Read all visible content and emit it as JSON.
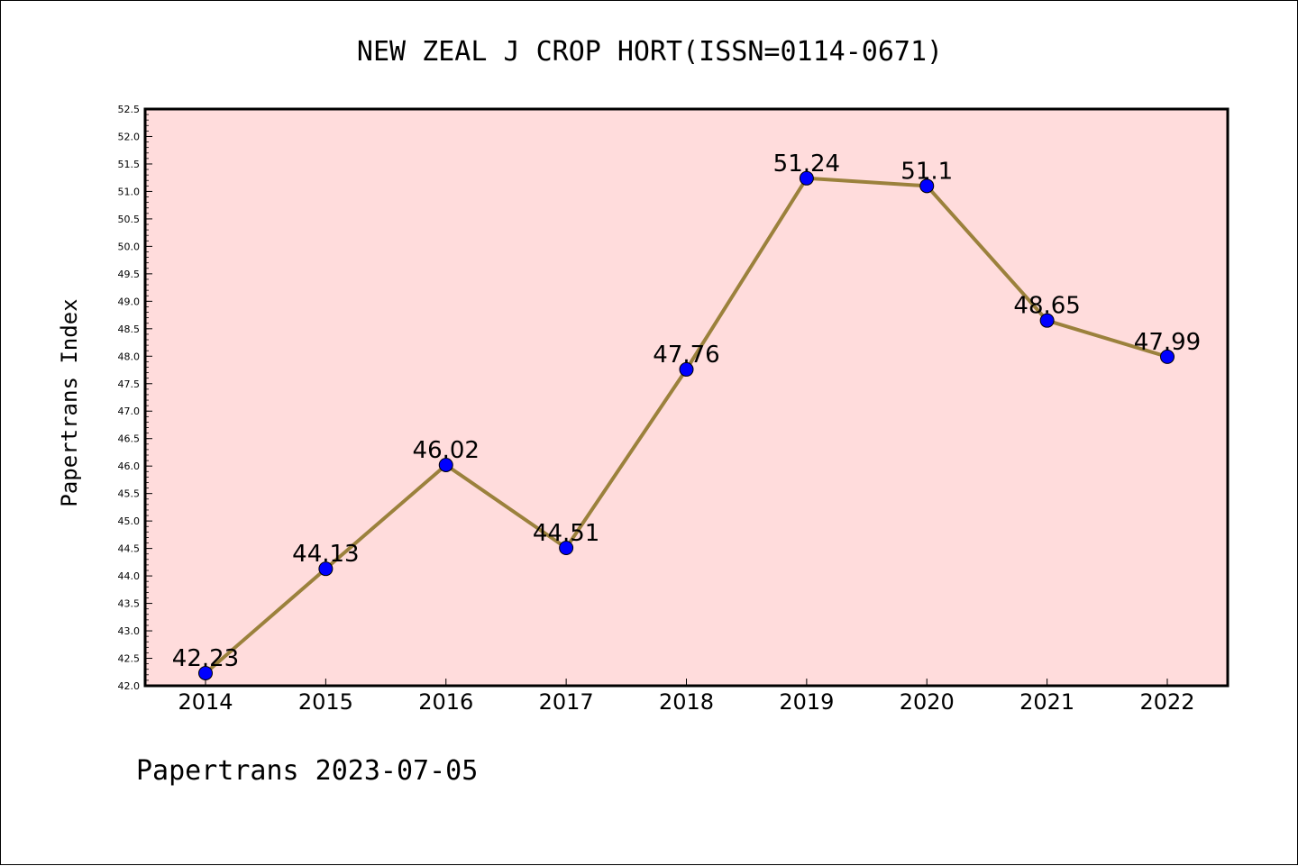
{
  "chart_data": {
    "type": "line",
    "title": "NEW ZEAL J CROP HORT(ISSN=0114-0671)",
    "ylabel": "Papertrans Index",
    "xlabel": "",
    "footer": "Papertrans 2023-07-05",
    "categories": [
      "2014",
      "2015",
      "2016",
      "2017",
      "2018",
      "2019",
      "2020",
      "2021",
      "2022"
    ],
    "values": [
      42.23,
      44.13,
      46.02,
      44.51,
      47.76,
      51.24,
      51.1,
      48.65,
      47.99
    ],
    "data_labels": [
      "42.23",
      "44.13",
      "46.02",
      "44.51",
      "47.76",
      "51.24",
      "51.1",
      "48.65",
      "47.99"
    ],
    "yticks": [
      "42.0",
      "42.5",
      "43.0",
      "43.5",
      "44.0",
      "44.5",
      "45.0",
      "45.5",
      "46.0",
      "46.5",
      "47.0",
      "47.5",
      "48.0",
      "48.5",
      "49.0",
      "49.5",
      "50.0",
      "50.5",
      "51.0",
      "51.5",
      "52.0",
      "52.5"
    ],
    "ylim": [
      42.0,
      52.5
    ],
    "grid": false,
    "colors": {
      "plot_background": "#ffdcdc",
      "line": "#9b813c",
      "marker": "#0000ff"
    }
  }
}
